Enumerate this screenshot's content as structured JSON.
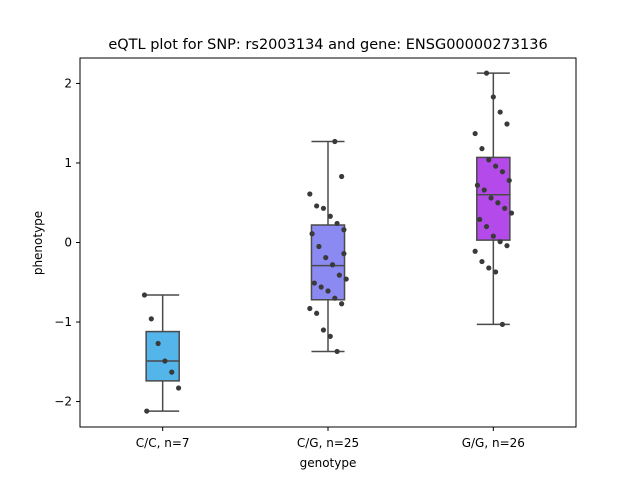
{
  "chart_data": {
    "type": "box",
    "title": "eQTL plot for SNP: rs2003134 and gene: ENSG00000273136",
    "xlabel": "genotype",
    "ylabel": "phenotype",
    "ylim": [
      -2.32,
      2.32
    ],
    "yticks": [
      -2,
      -1,
      0,
      1,
      2
    ],
    "ytick_labels": [
      "−2",
      "−1",
      "0",
      "1",
      "2"
    ],
    "grid": false,
    "groups": [
      {
        "label": "C/C, n=7",
        "color": "#53b5ea",
        "box": {
          "whisker_low": -2.12,
          "q1": -1.74,
          "median": -1.49,
          "q3": -1.12,
          "whisker_high": -0.66
        },
        "points": [
          -0.66,
          -0.96,
          -1.27,
          -1.49,
          -1.63,
          -1.83,
          -2.12
        ]
      },
      {
        "label": "C/G, n=25",
        "color": "#8b89f2",
        "box": {
          "whisker_low": -1.37,
          "q1": -0.72,
          "median": -0.29,
          "q3": 0.22,
          "whisker_high": 1.27
        },
        "points": [
          1.27,
          0.83,
          0.61,
          0.46,
          0.43,
          0.33,
          0.24,
          0.16,
          0.11,
          -0.05,
          -0.19,
          -0.28,
          -0.41,
          -0.46,
          -0.51,
          -0.56,
          -0.61,
          -0.7,
          -0.77,
          -0.83,
          -0.89,
          -1.1,
          -1.18,
          -1.37,
          -0.14
        ]
      },
      {
        "label": "G/G, n=26",
        "color": "#b44ae9",
        "box": {
          "whisker_low": -1.03,
          "q1": 0.03,
          "median": 0.6,
          "q3": 1.07,
          "whisker_high": 2.13
        },
        "points": [
          2.13,
          1.83,
          1.64,
          1.49,
          1.37,
          1.18,
          1.04,
          0.96,
          0.89,
          0.78,
          0.72,
          0.66,
          0.56,
          0.5,
          0.43,
          0.37,
          0.29,
          0.2,
          0.08,
          0.01,
          -0.04,
          -0.11,
          -0.24,
          -0.32,
          -0.37,
          -1.03
        ]
      }
    ]
  }
}
